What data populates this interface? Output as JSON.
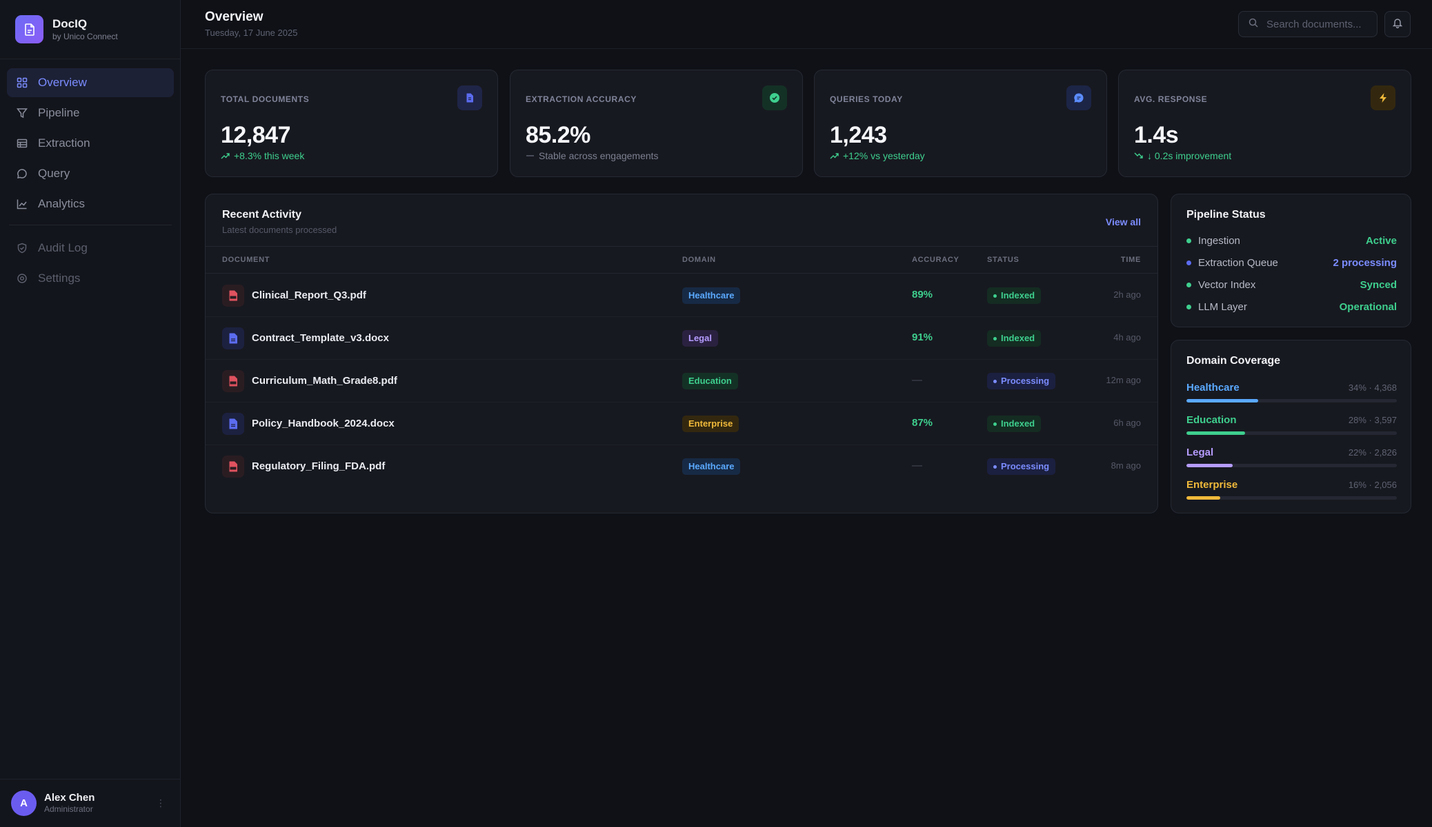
{
  "brand": {
    "name": "DocIQ",
    "subtitle": "by Unico Connect"
  },
  "nav": {
    "items": [
      {
        "label": "Overview",
        "icon": "grid-icon",
        "active": true
      },
      {
        "label": "Pipeline",
        "icon": "filter-icon"
      },
      {
        "label": "Extraction",
        "icon": "table-icon"
      },
      {
        "label": "Query",
        "icon": "chat-icon"
      },
      {
        "label": "Analytics",
        "icon": "chart-line-icon"
      }
    ],
    "secondary": [
      {
        "label": "Audit Log",
        "icon": "shield-icon"
      },
      {
        "label": "Settings",
        "icon": "gear-icon"
      }
    ]
  },
  "user": {
    "initial": "A",
    "name": "Alex Chen",
    "role": "Administrator"
  },
  "header": {
    "title": "Overview",
    "date": "Tuesday, 17 June 2025",
    "search_placeholder": "Search documents..."
  },
  "stats": [
    {
      "label": "TOTAL DOCUMENTS",
      "value": "12,847",
      "delta": "+8.3% this week",
      "icon": "document-icon",
      "accent": "#5b6cf0",
      "trend": "up"
    },
    {
      "label": "EXTRACTION ACCURACY",
      "value": "85.2%",
      "delta": "Stable across engagements",
      "icon": "check-circle-icon",
      "accent": "#3ecf8e",
      "trend": "flat"
    },
    {
      "label": "QUERIES TODAY",
      "value": "1,243",
      "delta": "+12% vs yesterday",
      "icon": "chat-bubble-icon",
      "accent": "#5b8cff",
      "trend": "up"
    },
    {
      "label": "AVG. RESPONSE",
      "value": "1.4s",
      "delta": "↓ 0.2s improvement",
      "icon": "lightning-icon",
      "accent": "#f0b93a",
      "trend": "down"
    }
  ],
  "activity": {
    "title": "Recent Activity",
    "subtitle": "Latest documents processed",
    "view_all": "View all",
    "columns": [
      "DOCUMENT",
      "DOMAIN",
      "ACCURACY",
      "STATUS",
      "TIME"
    ],
    "rows": [
      {
        "name": "Clinical_Report_Q3.pdf",
        "type": "pdf",
        "domain": "Healthcare",
        "accuracy": "89%",
        "status": "Indexed",
        "time": "2h ago"
      },
      {
        "name": "Contract_Template_v3.docx",
        "type": "doc",
        "domain": "Legal",
        "accuracy": "91%",
        "status": "Indexed",
        "time": "4h ago"
      },
      {
        "name": "Curriculum_Math_Grade8.pdf",
        "type": "pdf",
        "domain": "Education",
        "accuracy": "—",
        "status": "Processing",
        "time": "12m ago"
      },
      {
        "name": "Policy_Handbook_2024.docx",
        "type": "doc",
        "domain": "Enterprise",
        "accuracy": "87%",
        "status": "Indexed",
        "time": "6h ago"
      },
      {
        "name": "Regulatory_Filing_FDA.pdf",
        "type": "pdf",
        "domain": "Healthcare",
        "accuracy": "—",
        "status": "Processing",
        "time": "8m ago"
      }
    ]
  },
  "pipeline": {
    "title": "Pipeline Status",
    "items": [
      {
        "label": "Ingestion",
        "value": "Active",
        "color": "#3ecf8e"
      },
      {
        "label": "Extraction Queue",
        "value": "2 processing",
        "color": "#7b8cff"
      },
      {
        "label": "Vector Index",
        "value": "Synced",
        "color": "#3ecf8e"
      },
      {
        "label": "LLM Layer",
        "value": "Operational",
        "color": "#3ecf8e"
      }
    ]
  },
  "coverage": {
    "title": "Domain Coverage",
    "items": [
      {
        "name": "Healthcare",
        "meta": "34% · 4,368",
        "percent": 34,
        "color": "#5aa9ff"
      },
      {
        "name": "Education",
        "meta": "28% · 3,597",
        "percent": 28,
        "color": "#3ecf8e"
      },
      {
        "name": "Legal",
        "meta": "22% · 2,826",
        "percent": 22,
        "color": "#b59cff"
      },
      {
        "name": "Enterprise",
        "meta": "16% · 2,056",
        "percent": 16,
        "color": "#f0b93a"
      }
    ]
  }
}
